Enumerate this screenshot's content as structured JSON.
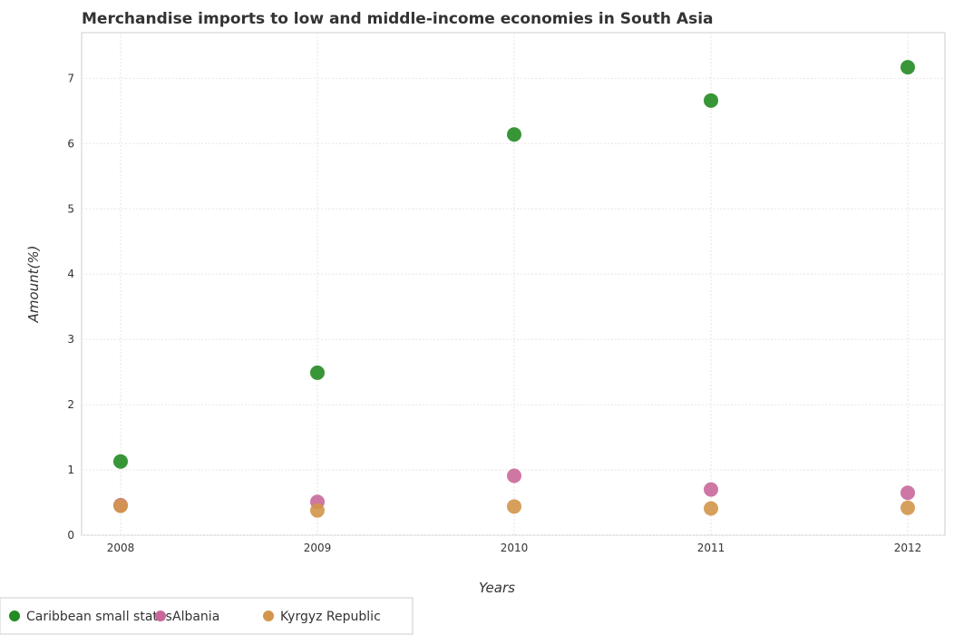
{
  "chart_data": {
    "type": "scatter",
    "title": "Merchandise imports to low and middle-income economies in South Asia",
    "xlabel": "Years",
    "ylabel": "Amount(%)",
    "categories": [
      "2008",
      "2009",
      "2010",
      "2011",
      "2012"
    ],
    "ylim": [
      0,
      7.7
    ],
    "yticks": [
      "0",
      "1",
      "2",
      "3",
      "4",
      "5",
      "6",
      "7"
    ],
    "grid": true,
    "legend_position": "bottom-left",
    "series": [
      {
        "name": "Caribbean small states",
        "color": "#228B22",
        "values": [
          1.13,
          2.49,
          6.14,
          6.66,
          7.17
        ]
      },
      {
        "name": "Albania",
        "color": "#C9679A",
        "values": [
          0.46,
          0.51,
          0.91,
          0.7,
          0.65
        ]
      },
      {
        "name": "Kyrgyz Republic",
        "color": "#D2964A",
        "values": [
          0.45,
          0.38,
          0.44,
          0.41,
          0.42
        ]
      }
    ]
  }
}
